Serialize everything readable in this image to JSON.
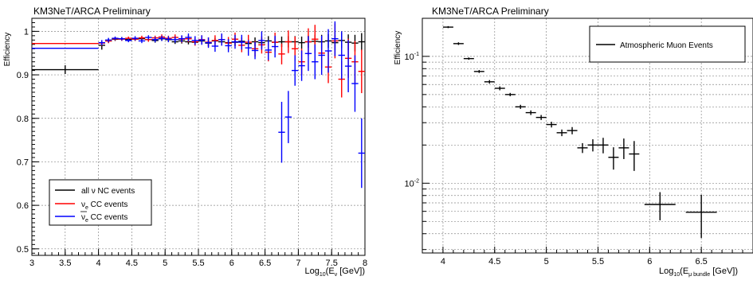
{
  "chart_data": [
    {
      "type": "scatter",
      "title": "KM3NeT/ARCA Preliminary",
      "ylabel": "Efficiency",
      "xlabel": {
        "base": "Log",
        "sub1": "10",
        "mid": "(E",
        "sub2": "ν",
        "end": " [GeV])"
      },
      "xlim": [
        3,
        8
      ],
      "ylim": [
        0.485,
        1.03
      ],
      "xticks": [
        "3",
        "3.5",
        "4",
        "4.5",
        "5",
        "5.5",
        "6",
        "6.5",
        "7",
        "7.5",
        "8"
      ],
      "yticks": [
        "0.5",
        "0.6",
        "0.7",
        "0.8",
        "0.9",
        "1"
      ],
      "grid": true,
      "legend_placement": "bottom-left",
      "series": [
        {
          "name": "all ν NC events",
          "legend_text": "all ν NC events",
          "color": "#000000",
          "points": [
            [
              3.5,
              0.912,
              0.5,
              0.01
            ],
            [
              4.05,
              0.968,
              0.05,
              0.01
            ],
            [
              4.15,
              0.978,
              0.05,
              0.005
            ],
            [
              4.25,
              0.982,
              0.05,
              0.004
            ],
            [
              4.35,
              0.983,
              0.05,
              0.004
            ],
            [
              4.45,
              0.981,
              0.05,
              0.004
            ],
            [
              4.55,
              0.982,
              0.05,
              0.004
            ],
            [
              4.65,
              0.983,
              0.05,
              0.004
            ],
            [
              4.75,
              0.981,
              0.05,
              0.004
            ],
            [
              4.85,
              0.979,
              0.05,
              0.005
            ],
            [
              4.95,
              0.983,
              0.05,
              0.005
            ],
            [
              5.05,
              0.981,
              0.05,
              0.005
            ],
            [
              5.15,
              0.976,
              0.05,
              0.005
            ],
            [
              5.25,
              0.978,
              0.05,
              0.006
            ],
            [
              5.35,
              0.976,
              0.05,
              0.006
            ],
            [
              5.45,
              0.975,
              0.05,
              0.006
            ],
            [
              5.55,
              0.978,
              0.05,
              0.007
            ],
            [
              5.65,
              0.973,
              0.05,
              0.007
            ],
            [
              5.75,
              0.978,
              0.05,
              0.007
            ],
            [
              5.85,
              0.976,
              0.05,
              0.008
            ],
            [
              5.95,
              0.974,
              0.05,
              0.008
            ],
            [
              6.05,
              0.975,
              0.05,
              0.009
            ],
            [
              6.15,
              0.977,
              0.05,
              0.009
            ],
            [
              6.25,
              0.972,
              0.05,
              0.01
            ],
            [
              6.35,
              0.976,
              0.05,
              0.01
            ],
            [
              6.45,
              0.974,
              0.05,
              0.011
            ],
            [
              6.55,
              0.978,
              0.05,
              0.011
            ],
            [
              6.65,
              0.975,
              0.05,
              0.012
            ],
            [
              6.75,
              0.976,
              0.05,
              0.012
            ],
            [
              6.85,
              0.976,
              0.05,
              0.013
            ],
            [
              6.95,
              0.976,
              0.05,
              0.013
            ],
            [
              7.05,
              0.974,
              0.05,
              0.014
            ],
            [
              7.15,
              0.976,
              0.05,
              0.014
            ],
            [
              7.25,
              0.977,
              0.05,
              0.015
            ],
            [
              7.35,
              0.976,
              0.05,
              0.016
            ],
            [
              7.45,
              0.978,
              0.05,
              0.016
            ],
            [
              7.55,
              0.974,
              0.05,
              0.017
            ],
            [
              7.65,
              0.979,
              0.05,
              0.018
            ],
            [
              7.75,
              0.975,
              0.05,
              0.018
            ],
            [
              7.85,
              0.973,
              0.05,
              0.019
            ],
            [
              7.95,
              0.976,
              0.05,
              0.02
            ]
          ]
        },
        {
          "name": "νe CC events",
          "legend_text": "ν",
          "legend_sub": "e",
          "legend_rest": " CC events",
          "color": "#ff0000",
          "points": [
            [
              3.5,
              0.972,
              0.5,
              0.0
            ],
            [
              4.05,
              0.973,
              0.05,
              0.006
            ],
            [
              4.15,
              0.978,
              0.05,
              0.005
            ],
            [
              4.25,
              0.983,
              0.05,
              0.004
            ],
            [
              4.35,
              0.982,
              0.05,
              0.004
            ],
            [
              4.45,
              0.984,
              0.05,
              0.004
            ],
            [
              4.55,
              0.982,
              0.05,
              0.004
            ],
            [
              4.65,
              0.985,
              0.05,
              0.005
            ],
            [
              4.75,
              0.981,
              0.05,
              0.005
            ],
            [
              4.85,
              0.985,
              0.05,
              0.005
            ],
            [
              4.95,
              0.987,
              0.05,
              0.006
            ],
            [
              5.05,
              0.984,
              0.05,
              0.006
            ],
            [
              5.15,
              0.986,
              0.05,
              0.007
            ],
            [
              5.25,
              0.982,
              0.05,
              0.008
            ],
            [
              5.35,
              0.983,
              0.05,
              0.008
            ],
            [
              5.45,
              0.976,
              0.05,
              0.009
            ],
            [
              5.55,
              0.981,
              0.05,
              0.01
            ],
            [
              5.65,
              0.975,
              0.05,
              0.011
            ],
            [
              5.75,
              0.979,
              0.05,
              0.012
            ],
            [
              5.85,
              0.981,
              0.05,
              0.013
            ],
            [
              5.95,
              0.973,
              0.05,
              0.014
            ],
            [
              6.05,
              0.982,
              0.05,
              0.015
            ],
            [
              6.15,
              0.968,
              0.05,
              0.016
            ],
            [
              6.25,
              0.975,
              0.05,
              0.017
            ],
            [
              6.35,
              0.96,
              0.05,
              0.018
            ],
            [
              6.45,
              0.969,
              0.05,
              0.02
            ],
            [
              6.55,
              0.952,
              0.05,
              0.021
            ],
            [
              6.65,
              0.975,
              0.05,
              0.022
            ],
            [
              6.75,
              0.948,
              0.05,
              0.024
            ],
            [
              6.85,
              0.976,
              0.05,
              0.026
            ],
            [
              6.95,
              0.96,
              0.05,
              0.028
            ],
            [
              7.05,
              0.93,
              0.05,
              0.03
            ],
            [
              7.15,
              0.976,
              0.05,
              0.031
            ],
            [
              7.25,
              0.982,
              0.05,
              0.033
            ],
            [
              7.35,
              0.95,
              0.05,
              0.035
            ],
            [
              7.45,
              0.918,
              0.05,
              0.037
            ],
            [
              7.55,
              0.978,
              0.05,
              0.04
            ],
            [
              7.65,
              0.89,
              0.05,
              0.042
            ],
            [
              7.75,
              0.938,
              0.05,
              0.045
            ],
            [
              7.85,
              0.93,
              0.05,
              0.048
            ],
            [
              7.95,
              0.908,
              0.05,
              0.05
            ]
          ]
        },
        {
          "name": "ν̄e CC events",
          "legend_text": "ν",
          "legend_sub": "e",
          "legend_rest": " CC events",
          "legend_bar": true,
          "color": "#0000ff",
          "points": [
            [
              3.5,
              0.961,
              0.5,
              0.0
            ],
            [
              4.05,
              0.974,
              0.05,
              0.006
            ],
            [
              4.15,
              0.98,
              0.05,
              0.005
            ],
            [
              4.25,
              0.984,
              0.05,
              0.004
            ],
            [
              4.35,
              0.983,
              0.05,
              0.004
            ],
            [
              4.45,
              0.979,
              0.05,
              0.004
            ],
            [
              4.55,
              0.984,
              0.05,
              0.005
            ],
            [
              4.65,
              0.978,
              0.05,
              0.005
            ],
            [
              4.75,
              0.986,
              0.05,
              0.005
            ],
            [
              4.85,
              0.981,
              0.05,
              0.006
            ],
            [
              4.95,
              0.984,
              0.05,
              0.006
            ],
            [
              5.05,
              0.982,
              0.05,
              0.007
            ],
            [
              5.15,
              0.981,
              0.05,
              0.007
            ],
            [
              5.25,
              0.983,
              0.05,
              0.008
            ],
            [
              5.35,
              0.986,
              0.05,
              0.009
            ],
            [
              5.45,
              0.979,
              0.05,
              0.01
            ],
            [
              5.55,
              0.98,
              0.05,
              0.011
            ],
            [
              5.65,
              0.974,
              0.05,
              0.012
            ],
            [
              5.75,
              0.966,
              0.05,
              0.013
            ],
            [
              5.85,
              0.981,
              0.05,
              0.014
            ],
            [
              5.95,
              0.967,
              0.05,
              0.015
            ],
            [
              6.05,
              0.976,
              0.05,
              0.016
            ],
            [
              6.15,
              0.975,
              0.05,
              0.017
            ],
            [
              6.25,
              0.962,
              0.05,
              0.018
            ],
            [
              6.35,
              0.956,
              0.05,
              0.02
            ],
            [
              6.45,
              0.979,
              0.05,
              0.021
            ],
            [
              6.55,
              0.957,
              0.05,
              0.023
            ],
            [
              6.65,
              0.965,
              0.05,
              0.025
            ],
            [
              6.75,
              0.768,
              0.05,
              0.07
            ],
            [
              6.85,
              0.803,
              0.05,
              0.06
            ],
            [
              6.95,
              0.91,
              0.05,
              0.035
            ],
            [
              7.05,
              0.921,
              0.05,
              0.035
            ],
            [
              7.15,
              0.949,
              0.05,
              0.04
            ],
            [
              7.25,
              0.93,
              0.05,
              0.04
            ],
            [
              7.35,
              0.945,
              0.05,
              0.045
            ],
            [
              7.45,
              0.955,
              0.05,
              0.05
            ],
            [
              7.55,
              0.983,
              0.05,
              0.04
            ],
            [
              7.65,
              0.945,
              0.05,
              0.055
            ],
            [
              7.75,
              0.92,
              0.05,
              0.06
            ],
            [
              7.85,
              0.88,
              0.05,
              0.065
            ],
            [
              7.95,
              0.72,
              0.05,
              0.08
            ]
          ]
        }
      ]
    },
    {
      "type": "scatter",
      "title": "KM3NeT/ARCA Preliminary",
      "ylabel": "Efficiency",
      "xlabel": {
        "base": "Log",
        "sub1": "10",
        "mid": "(E",
        "sub2": "μ bundle",
        "end": " [GeV])"
      },
      "xlim": [
        3.8,
        7.0
      ],
      "ylim_log": [
        -2.55,
        -0.7
      ],
      "log_y": true,
      "xticks": [
        "4",
        "4.5",
        "5",
        "5.5",
        "6",
        "6.5"
      ],
      "yticks": [
        {
          "base": "10",
          "exp": "-1",
          "value": 0.1
        },
        {
          "base": "10",
          "exp": "-2",
          "value": 0.01
        }
      ],
      "grid": true,
      "legend_placement": "top-right",
      "series": [
        {
          "name": "Atmospheric Muon Events",
          "legend_text": "Atmospheric Muon Events",
          "color": "#000000",
          "points": [
            [
              4.05,
              0.17,
              0.05,
              0.003
            ],
            [
              4.15,
              0.126,
              0.05,
              0.003
            ],
            [
              4.25,
              0.096,
              0.05,
              0.002
            ],
            [
              4.35,
              0.076,
              0.05,
              0.002
            ],
            [
              4.45,
              0.063,
              0.05,
              0.002
            ],
            [
              4.55,
              0.056,
              0.05,
              0.002
            ],
            [
              4.65,
              0.05,
              0.05,
              0.0015
            ],
            [
              4.75,
              0.04,
              0.05,
              0.0015
            ],
            [
              4.85,
              0.036,
              0.05,
              0.0015
            ],
            [
              4.95,
              0.033,
              0.05,
              0.0015
            ],
            [
              5.05,
              0.029,
              0.05,
              0.0015
            ],
            [
              5.15,
              0.025,
              0.05,
              0.0015
            ],
            [
              5.25,
              0.026,
              0.05,
              0.0017
            ],
            [
              5.35,
              0.019,
              0.05,
              0.0017
            ],
            [
              5.45,
              0.02,
              0.05,
              0.0022
            ],
            [
              5.55,
              0.02,
              0.05,
              0.0028
            ],
            [
              5.65,
              0.016,
              0.05,
              0.0032
            ],
            [
              5.75,
              0.019,
              0.05,
              0.0035
            ],
            [
              5.85,
              0.017,
              0.05,
              0.0045
            ],
            [
              6.1,
              0.0068,
              0.15,
              0.0017
            ],
            [
              6.5,
              0.0059,
              0.15,
              0.0022
            ]
          ]
        }
      ]
    }
  ]
}
